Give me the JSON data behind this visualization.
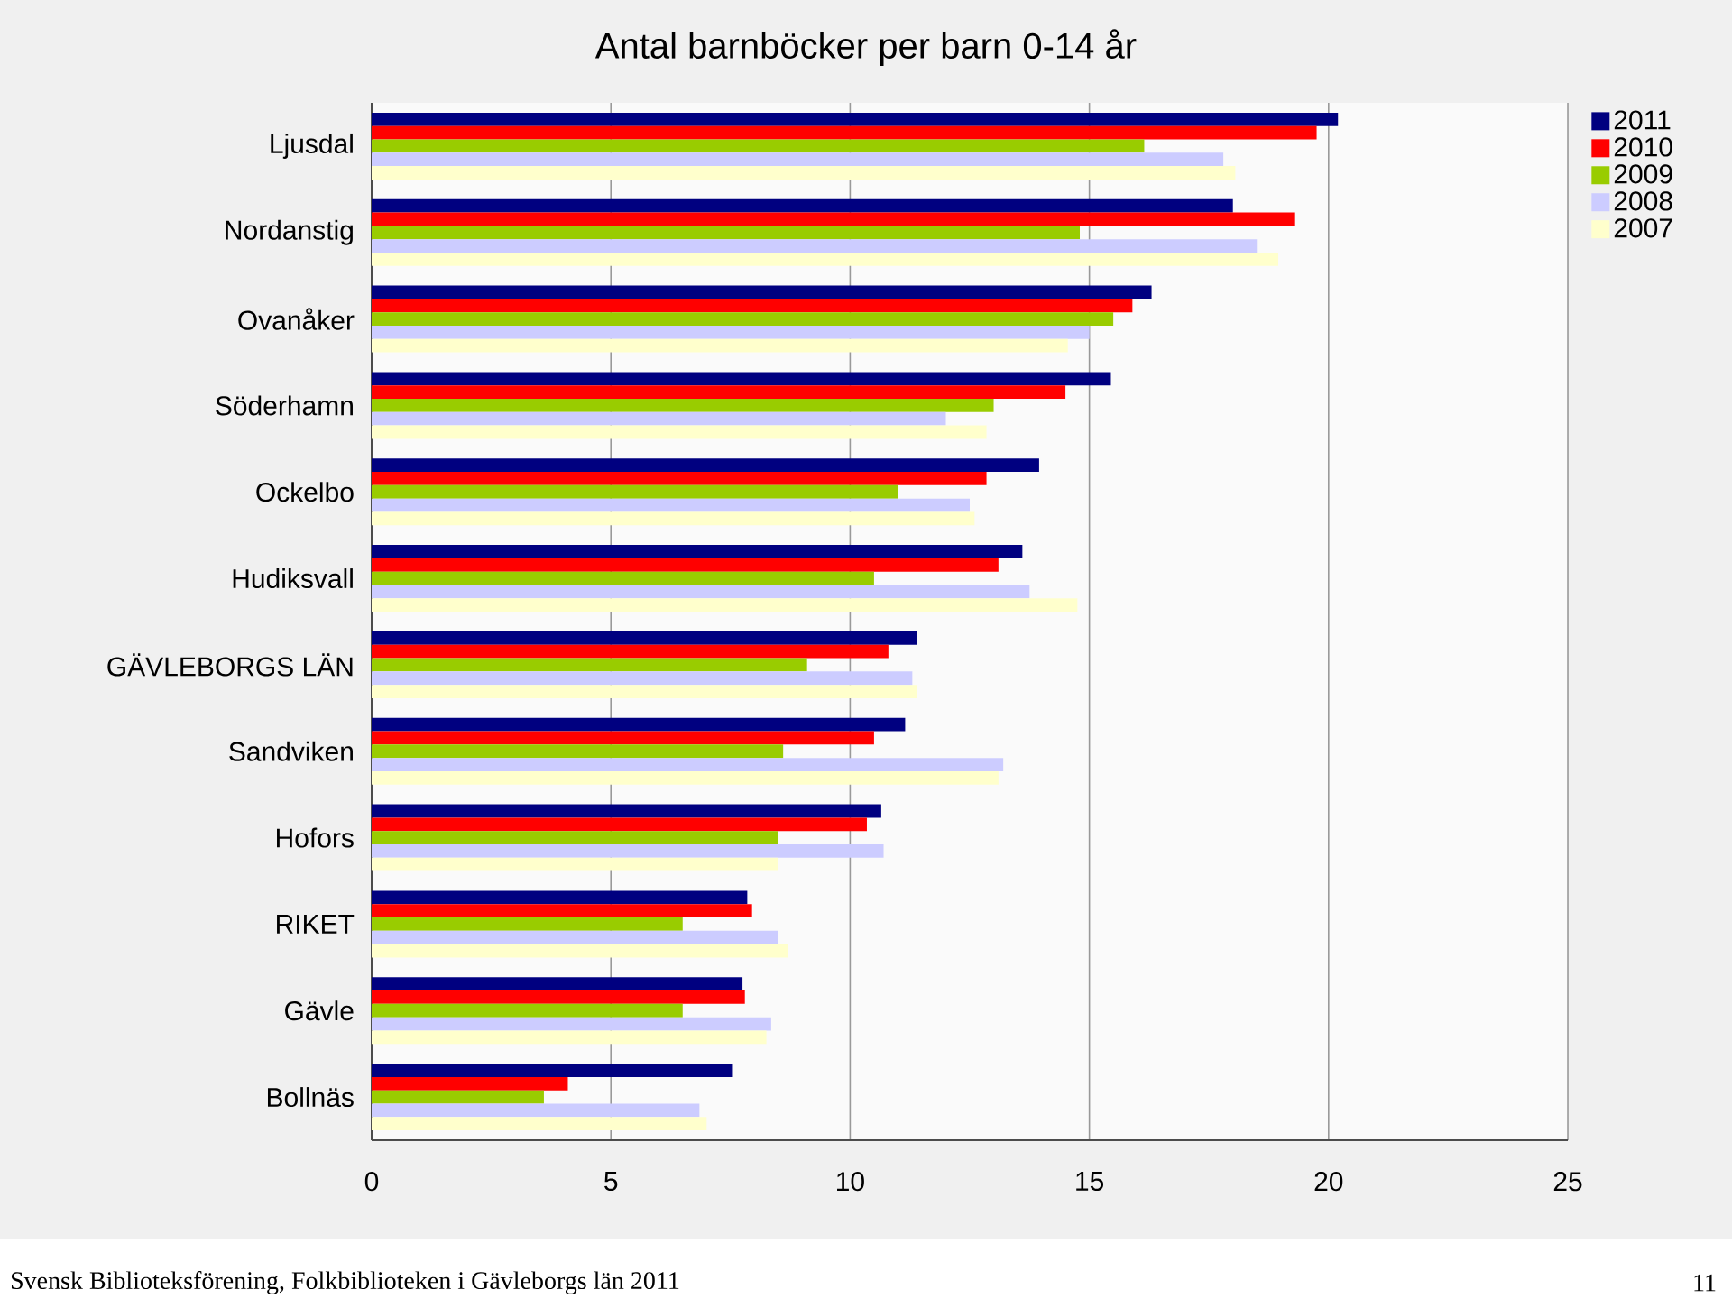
{
  "chart_data": {
    "type": "bar",
    "orientation": "horizontal",
    "title": "Antal barnböcker per barn 0-14 år",
    "categories": [
      "Ljusdal",
      "Nordanstig",
      "Ovanåker",
      "Söderhamn",
      "Ockelbo",
      "Hudiksvall",
      "GÄVLEBORGS LÄN",
      "Sandviken",
      "Hofors",
      "RIKET",
      "Gävle",
      "Bollnäs"
    ],
    "series": [
      {
        "name": "2011",
        "color": "#000080",
        "values": [
          20.2,
          18.0,
          16.3,
          15.45,
          13.95,
          13.6,
          11.4,
          11.15,
          10.65,
          7.85,
          7.75,
          7.55
        ]
      },
      {
        "name": "2010",
        "color": "#ff0000",
        "values": [
          19.75,
          19.3,
          15.9,
          14.5,
          12.85,
          13.1,
          10.8,
          10.5,
          10.35,
          7.95,
          7.8,
          4.1
        ]
      },
      {
        "name": "2009",
        "color": "#99cc00",
        "values": [
          16.15,
          14.8,
          15.5,
          13.0,
          11.0,
          10.5,
          9.1,
          8.6,
          8.5,
          6.5,
          6.5,
          3.6
        ]
      },
      {
        "name": "2008",
        "color": "#ccccff",
        "values": [
          17.8,
          18.5,
          15.0,
          12.0,
          12.5,
          13.75,
          11.3,
          13.2,
          10.7,
          8.5,
          8.35,
          6.85
        ]
      },
      {
        "name": "2007",
        "color": "#ffffcc",
        "values": [
          18.05,
          18.95,
          14.55,
          12.85,
          12.6,
          14.75,
          11.4,
          13.1,
          8.5,
          8.7,
          8.25,
          7.0
        ]
      }
    ],
    "xlim": [
      0,
      25
    ],
    "xticks": [
      0,
      5,
      10,
      15,
      20,
      25
    ],
    "grid": "x",
    "legend": "top right",
    "annotations": [
      "Svensk Biblioteksförening, Folkbiblioteken i Gävleborgs län 2011",
      "11"
    ]
  }
}
